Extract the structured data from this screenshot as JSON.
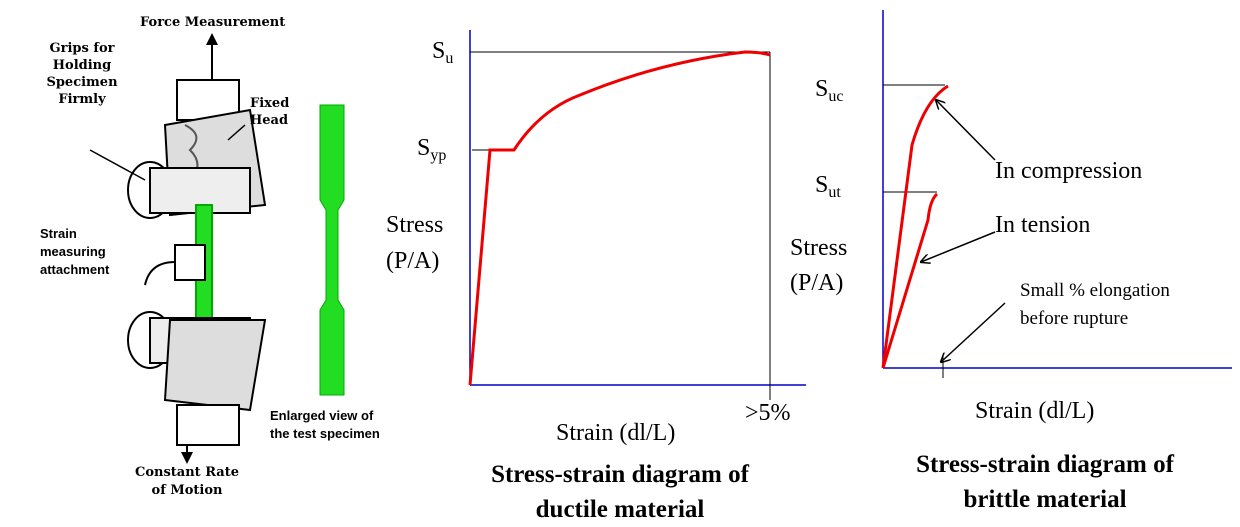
{
  "machine": {
    "force": "Force Measurement",
    "grips": [
      "Grips for",
      "Holding",
      "Specimen",
      "Firmly"
    ],
    "fixed_head": [
      "Fixed",
      "Head"
    ],
    "strain_attachment": [
      "Strain",
      "measuring",
      "attachment"
    ],
    "specimen_view": [
      "Enlarged view of",
      "the test specimen"
    ],
    "motion": [
      "Constant Rate",
      "of Motion"
    ]
  },
  "ductile": {
    "ultimate": {
      "symbol": "S",
      "subscript": "u"
    },
    "yield": {
      "symbol": "S",
      "subscript": "yp"
    },
    "y_label": [
      "Stress",
      "(P/A)"
    ],
    "x_label": "Strain (dl/L)",
    "elongation": ">5%",
    "title": [
      "Stress-strain diagram of",
      "ductile material"
    ]
  },
  "brittle": {
    "compression_strength": {
      "symbol": "S",
      "subscript": "uc"
    },
    "tension_strength": {
      "symbol": "S",
      "subscript": "ut"
    },
    "compression_label": "In compression",
    "tension_label": "In tension",
    "y_label": [
      "Stress",
      "(P/A)"
    ],
    "elongation_note": [
      "Small % elongation",
      "before rupture"
    ],
    "x_label": "Strain (dl/L)",
    "title": [
      "Stress-strain diagram of",
      "brittle material"
    ]
  }
}
